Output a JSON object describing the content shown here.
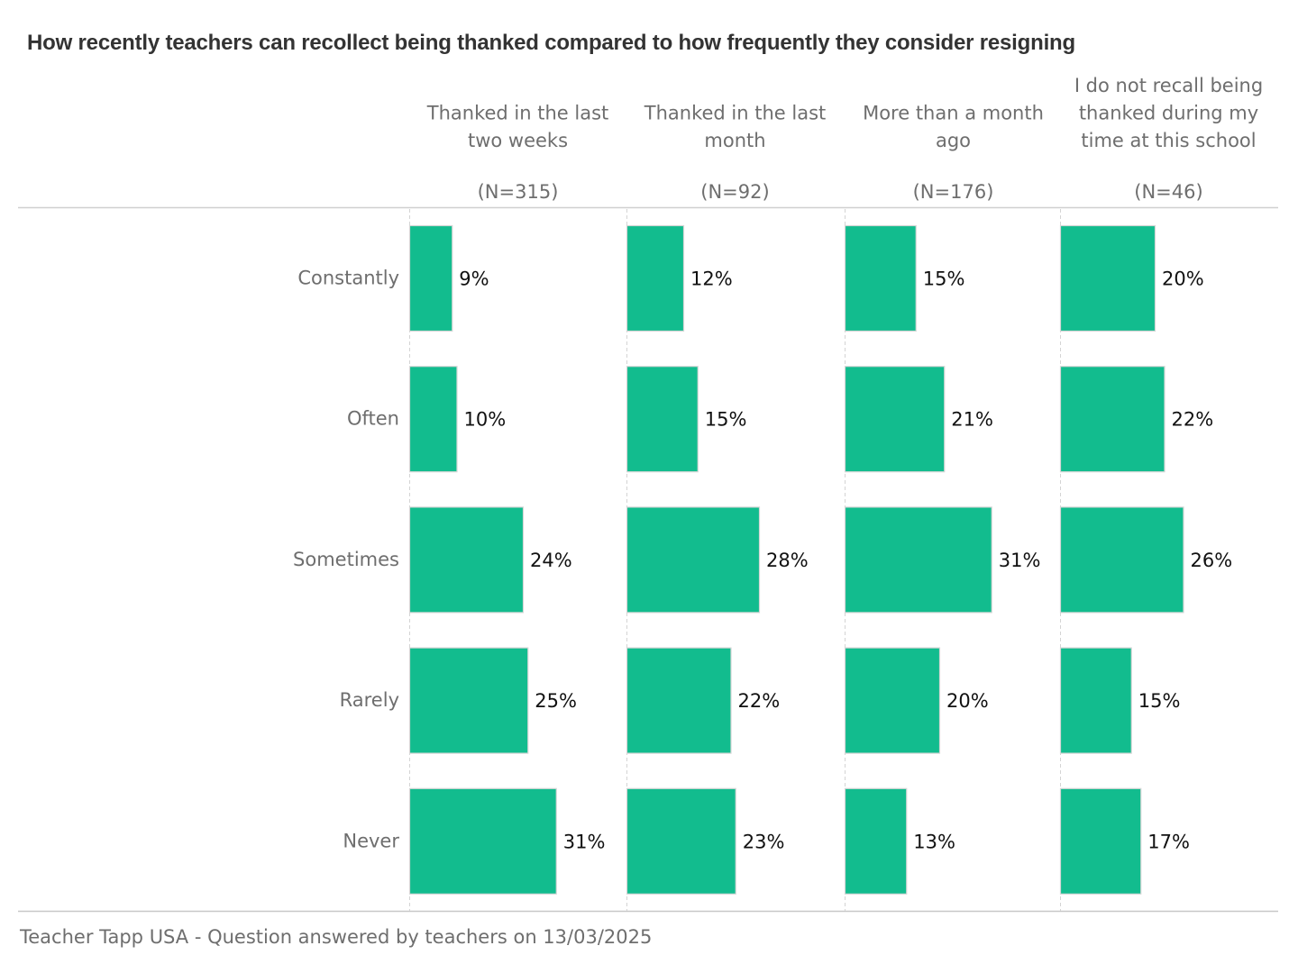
{
  "chart_data": {
    "type": "bar",
    "orientation": "horizontal",
    "layout": "small-multiples",
    "title": "How recently teachers can recollect being thanked compared to how frequently they consider resigning",
    "categories": [
      "Constantly",
      "Often",
      "Sometimes",
      "Rarely",
      "Never"
    ],
    "series": [
      {
        "name": "Thanked in the last two weeks",
        "name_lines": [
          "Thanked in the last",
          "two weeks"
        ],
        "n_label": "(N=315)",
        "values": [
          9,
          10,
          24,
          25,
          31
        ],
        "labels": [
          "9%",
          "10%",
          "24%",
          "25%",
          "31%"
        ]
      },
      {
        "name": "Thanked in the last month",
        "name_lines": [
          "Thanked in the last",
          "month"
        ],
        "n_label": "(N=92)",
        "values": [
          12,
          15,
          28,
          22,
          23
        ],
        "labels": [
          "12%",
          "15%",
          "28%",
          "22%",
          "23%"
        ]
      },
      {
        "name": "More than a month ago",
        "name_lines": [
          "More than a month",
          "ago"
        ],
        "n_label": "(N=176)",
        "values": [
          15,
          21,
          31,
          20,
          13
        ],
        "labels": [
          "15%",
          "21%",
          "31%",
          "20%",
          "13%"
        ]
      },
      {
        "name": "I do not recall being thanked during my time at this school",
        "name_lines": [
          "I do not recall being",
          "thanked during my",
          "time at this school"
        ],
        "n_label": "(N=46)",
        "values": [
          20,
          22,
          26,
          15,
          17
        ],
        "labels": [
          "20%",
          "22%",
          "26%",
          "15%",
          "17%"
        ]
      }
    ],
    "unit": "%",
    "xlim": [
      0,
      45
    ],
    "bar_color": "#12bc8e",
    "grid": true,
    "legend": "none",
    "footer": "Teacher Tapp USA - Question answered by  teachers on 13/03/2025"
  }
}
